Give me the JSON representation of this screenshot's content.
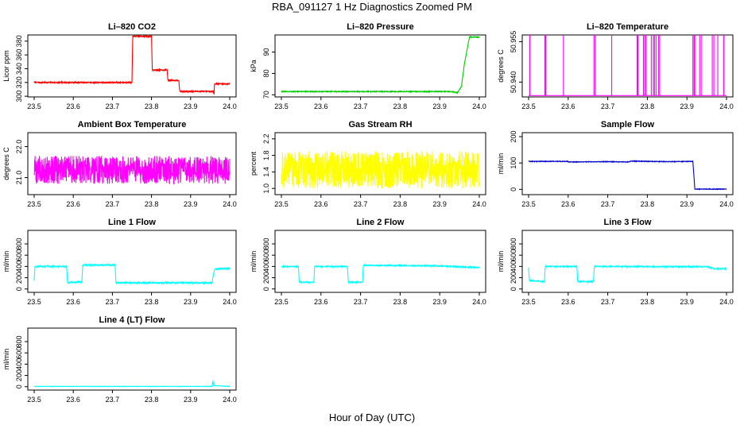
{
  "figure": {
    "title": "RBA_091127  1 Hz Diagnostics Zoomed PM",
    "xlabel": "Hour of Day (UTC)"
  },
  "chart_data": [
    {
      "type": "line",
      "title": "Li–820 CO2",
      "ylabel": "Licor ppm",
      "color": "#ff0000",
      "xlim": [
        23.5,
        24.0
      ],
      "ylim": [
        299,
        389
      ],
      "xticks": [
        "23.5",
        "23.6",
        "23.7",
        "23.8",
        "23.9",
        "24.0"
      ],
      "yticks": [
        "300",
        "320",
        "340",
        "360",
        "380"
      ],
      "series": [
        {
          "noise": 0.8,
          "points": [
            [
              23.5,
              320
            ],
            [
              23.75,
              320
            ],
            [
              23.752,
              387
            ],
            [
              23.8,
              387
            ],
            [
              23.802,
              338
            ],
            [
              23.84,
              338
            ],
            [
              23.842,
              323
            ],
            [
              23.87,
              323
            ],
            [
              23.872,
              307
            ],
            [
              23.958,
              307
            ],
            [
              23.96,
              303
            ],
            [
              23.961,
              318
            ],
            [
              24.0,
              318
            ]
          ]
        }
      ]
    },
    {
      "type": "line",
      "title": "Li–820 Pressure",
      "ylabel": "kPa",
      "color": "#00cc00",
      "xlim": [
        23.5,
        24.0
      ],
      "ylim": [
        69,
        98
      ],
      "xticks": [
        "23.5",
        "23.6",
        "23.7",
        "23.8",
        "23.9",
        "24.0"
      ],
      "yticks": [
        "70",
        "80",
        "90"
      ],
      "series": [
        {
          "noise": 0.2,
          "points": [
            [
              23.5,
              71.5
            ],
            [
              23.93,
              71.5
            ],
            [
              23.945,
              71.0
            ],
            [
              23.955,
              74
            ],
            [
              23.962,
              84
            ],
            [
              23.97,
              92
            ],
            [
              23.975,
              97
            ],
            [
              24.0,
              97
            ]
          ]
        }
      ]
    },
    {
      "type": "line",
      "title": "Li–820 Temperature",
      "ylabel": "degrees C",
      "color": "#ff00ff",
      "xlim": [
        23.5,
        24.0
      ],
      "ylim": [
        50.9345,
        50.9575
      ],
      "xticks": [
        "23.5",
        "23.6",
        "23.7",
        "23.8",
        "23.9",
        "24.0"
      ],
      "yticks": [
        "50.940",
        "50.955"
      ],
      "series": [
        {
          "noise": 0,
          "baseline": 50.935,
          "spike_top": 50.9575,
          "spikes": [
            23.503,
            23.541,
            23.543,
            23.588,
            23.665,
            23.668,
            23.71,
            23.774,
            23.776,
            23.79,
            23.793,
            23.796,
            23.81,
            23.815,
            23.818,
            23.822,
            23.828,
            23.831,
            23.915,
            23.918,
            23.92,
            23.932,
            23.936,
            23.964,
            23.968,
            23.978,
            23.993
          ]
        }
      ]
    },
    {
      "type": "line",
      "title": "Ambient Box Temperature",
      "ylabel": "degrees C",
      "color": "#ff00ff",
      "xlim": [
        23.5,
        24.0
      ],
      "ylim": [
        20.45,
        22.45
      ],
      "xticks": [
        "23.5",
        "23.6",
        "23.7",
        "23.8",
        "23.9",
        "24.0"
      ],
      "yticks": [
        "21.0",
        "22.0"
      ],
      "series": [
        {
          "noise": 0.45,
          "points": [
            [
              23.5,
              21.25
            ],
            [
              24.0,
              21.25
            ]
          ]
        }
      ]
    },
    {
      "type": "line",
      "title": "Gas Stream RH",
      "ylabel": "percent",
      "color": "#ffff00",
      "xlim": [
        23.5,
        24.0
      ],
      "ylim": [
        0.85,
        2.35
      ],
      "xticks": [
        "23.5",
        "23.6",
        "23.7",
        "23.8",
        "23.9",
        "24.0"
      ],
      "yticks": [
        "1.0",
        "1.4",
        "1.8",
        "2.2"
      ],
      "series": [
        {
          "noise": 0.45,
          "points": [
            [
              23.5,
              1.45
            ],
            [
              24.0,
              1.45
            ]
          ]
        }
      ]
    },
    {
      "type": "line",
      "title": "Sample Flow",
      "ylabel": "ml/min",
      "color": "#0000cc",
      "xlim": [
        23.5,
        24.0
      ],
      "ylim": [
        -20,
        215
      ],
      "xticks": [
        "23.5",
        "23.6",
        "23.7",
        "23.8",
        "23.9",
        "24.0"
      ],
      "yticks": [
        "0",
        "100",
        "200"
      ],
      "series": [
        {
          "noise": 1.2,
          "points": [
            [
              23.5,
              106
            ],
            [
              23.6,
              106
            ],
            [
              23.601,
              104
            ],
            [
              23.7,
              105
            ],
            [
              23.75,
              104
            ],
            [
              23.76,
              107
            ],
            [
              23.86,
              105
            ],
            [
              23.915,
              106
            ],
            [
              23.92,
              1
            ],
            [
              24.0,
              1
            ]
          ]
        }
      ]
    },
    {
      "type": "line",
      "title": "Line 1 Flow",
      "ylabel": "ml/min",
      "color": "#00ffff",
      "xlim": [
        23.5,
        24.0
      ],
      "ylim": [
        -60,
        1040
      ],
      "xticks": [
        "23.5",
        "23.6",
        "23.7",
        "23.8",
        "23.9",
        "24.0"
      ],
      "yticks": [
        "0",
        "200",
        "400",
        "600",
        "800"
      ],
      "series": [
        {
          "noise": 12,
          "points": [
            [
              23.5,
              150
            ],
            [
              23.502,
              400
            ],
            [
              23.583,
              400
            ],
            [
              23.585,
              120
            ],
            [
              23.622,
              120
            ],
            [
              23.624,
              425
            ],
            [
              23.707,
              425
            ],
            [
              23.709,
              110
            ],
            [
              23.955,
              110
            ],
            [
              23.958,
              250
            ],
            [
              23.962,
              360
            ],
            [
              24.0,
              360
            ]
          ]
        }
      ]
    },
    {
      "type": "line",
      "title": "Line 2 Flow",
      "ylabel": "ml/min",
      "color": "#00ffff",
      "xlim": [
        23.5,
        24.0
      ],
      "ylim": [
        -60,
        1040
      ],
      "xticks": [
        "23.5",
        "23.6",
        "23.7",
        "23.8",
        "23.9",
        "24.0"
      ],
      "yticks": [
        "0",
        "200",
        "400",
        "600",
        "800"
      ],
      "series": [
        {
          "noise": 10,
          "points": [
            [
              23.5,
              400
            ],
            [
              23.543,
              400
            ],
            [
              23.545,
              120
            ],
            [
              23.582,
              120
            ],
            [
              23.584,
              400
            ],
            [
              23.667,
              400
            ],
            [
              23.669,
              120
            ],
            [
              23.705,
              120
            ],
            [
              23.707,
              420
            ],
            [
              23.9,
              410
            ],
            [
              23.97,
              385
            ],
            [
              24.0,
              385
            ]
          ]
        }
      ]
    },
    {
      "type": "line",
      "title": "Line 3 Flow",
      "ylabel": "ml/min",
      "color": "#00ffff",
      "xlim": [
        23.5,
        24.0
      ],
      "ylim": [
        -60,
        1040
      ],
      "xticks": [
        "23.5",
        "23.6",
        "23.7",
        "23.8",
        "23.9",
        "24.0"
      ],
      "yticks": [
        "0",
        "200",
        "400",
        "600",
        "800"
      ],
      "series": [
        {
          "noise": 10,
          "points": [
            [
              23.5,
              380
            ],
            [
              23.502,
              150
            ],
            [
              23.54,
              130
            ],
            [
              23.542,
              400
            ],
            [
              23.622,
              400
            ],
            [
              23.624,
              130
            ],
            [
              23.664,
              130
            ],
            [
              23.666,
              400
            ],
            [
              23.95,
              395
            ],
            [
              23.97,
              360
            ],
            [
              24.0,
              360
            ]
          ]
        }
      ]
    },
    {
      "type": "line",
      "title": "Line 4 (LT) Flow",
      "ylabel": "ml/min",
      "color": "#00ffff",
      "xlim": [
        23.5,
        24.0
      ],
      "ylim": [
        -60,
        1040
      ],
      "xticks": [
        "23.5",
        "23.6",
        "23.7",
        "23.8",
        "23.9",
        "24.0"
      ],
      "yticks": [
        "0",
        "200",
        "400",
        "600",
        "800"
      ],
      "series": [
        {
          "noise": 3,
          "points": [
            [
              23.5,
              5
            ],
            [
              23.955,
              5
            ],
            [
              23.957,
              110
            ],
            [
              23.959,
              20
            ],
            [
              24.0,
              5
            ]
          ]
        }
      ]
    }
  ]
}
